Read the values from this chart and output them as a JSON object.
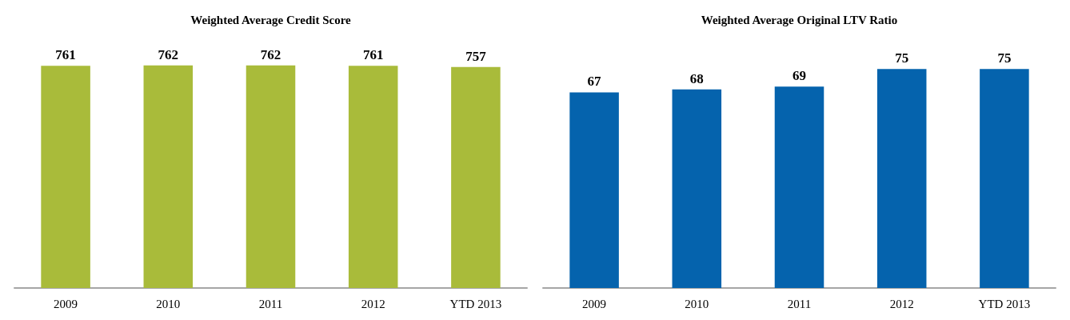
{
  "chart_data": [
    {
      "type": "bar",
      "title": "Weighted Average Credit Score",
      "categories": [
        "2009",
        "2010",
        "2011",
        "2012",
        "YTD 2013"
      ],
      "values": [
        761,
        762,
        762,
        761,
        757
      ],
      "color": "#a9bb3a",
      "data_labels": true
    },
    {
      "type": "bar",
      "title": "Weighted Average Original LTV Ratio",
      "categories": [
        "2009",
        "2010",
        "2011",
        "2012",
        "YTD 2013"
      ],
      "values": [
        67,
        68,
        69,
        75,
        75
      ],
      "color": "#0563ad",
      "data_labels": true
    }
  ]
}
